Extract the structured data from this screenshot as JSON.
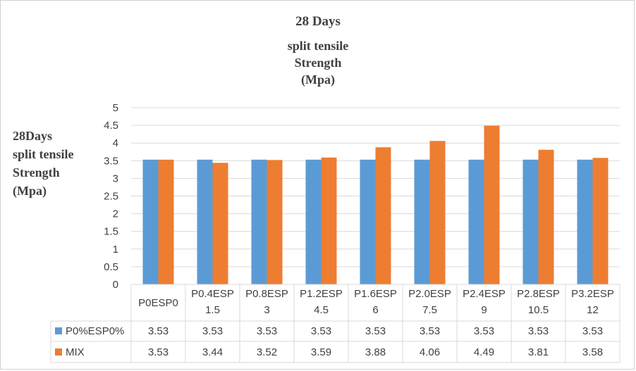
{
  "chart_data": {
    "type": "bar",
    "title": "28 Days",
    "subtitle": [
      "split tensile",
      "Strength",
      "(Mpa)"
    ],
    "ylabel": [
      "28Days",
      "split tensile",
      "Strength",
      "(Mpa)"
    ],
    "ylim": [
      0,
      5
    ],
    "yticks": [
      "0",
      "0.5",
      "1",
      "1.5",
      "2",
      "2.5",
      "3",
      "3.5",
      "4",
      "4.5",
      "5"
    ],
    "grid": true,
    "categories": [
      [
        "P0ESP0"
      ],
      [
        "P0.4ESP",
        "1.5"
      ],
      [
        "P0.8ESP",
        "3"
      ],
      [
        "P1.2ESP",
        "4.5"
      ],
      [
        "P1.6ESP",
        "6"
      ],
      [
        "P2.0ESP",
        "7.5"
      ],
      [
        "P2.4ESP",
        "9"
      ],
      [
        "P2.8ESP",
        "10.5"
      ],
      [
        "P3.2ESP",
        "12"
      ]
    ],
    "series": [
      {
        "name": "P0%ESP0%",
        "color": "#5B9BD5",
        "values": [
          3.53,
          3.53,
          3.53,
          3.53,
          3.53,
          3.53,
          3.53,
          3.53,
          3.53
        ],
        "labels": [
          "3.53",
          "3.53",
          "3.53",
          "3.53",
          "3.53",
          "3.53",
          "3.53",
          "3.53",
          "3.53"
        ]
      },
      {
        "name": "MIX",
        "color": "#ED7D31",
        "values": [
          3.53,
          3.44,
          3.52,
          3.59,
          3.88,
          4.06,
          4.49,
          3.81,
          3.58
        ],
        "labels": [
          "3.53",
          "3.44",
          "3.52",
          "3.59",
          "3.88",
          "4.06",
          "4.49",
          "3.81",
          "3.58"
        ]
      }
    ],
    "legend": "data-table"
  }
}
